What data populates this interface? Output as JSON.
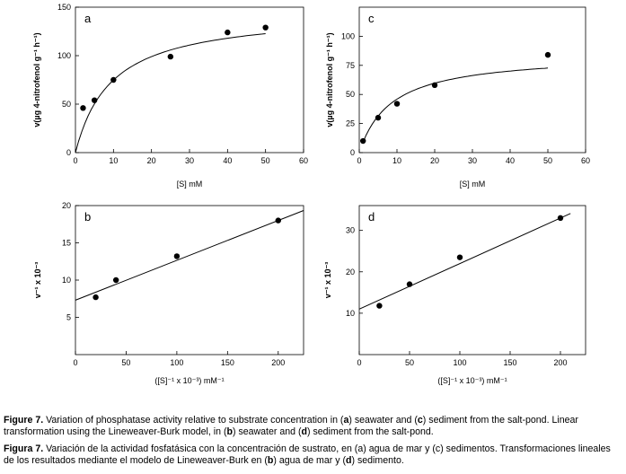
{
  "chart_data": [
    {
      "panel": "a",
      "type": "scatter",
      "xlabel": "[S] mM",
      "ylabel": "v(µg 4-nitrofenol g⁻¹ h⁻¹)",
      "xlim": [
        0,
        60
      ],
      "ylim": [
        0,
        150
      ],
      "xticks": [
        0,
        10,
        20,
        30,
        40,
        50,
        60
      ],
      "yticks": [
        0,
        50,
        100,
        150
      ],
      "points": [
        [
          2,
          46
        ],
        [
          5,
          54
        ],
        [
          10,
          75
        ],
        [
          25,
          99
        ],
        [
          40,
          124
        ],
        [
          50,
          129
        ]
      ],
      "fit": {
        "kind": "michaelis-menten",
        "vmax": 146,
        "km": 9.5,
        "x0": 0,
        "x1": 50
      }
    },
    {
      "panel": "c",
      "type": "scatter",
      "xlabel": "[S] mM",
      "ylabel": "v(µg 4-nitrofenol g⁻¹ h⁻¹)",
      "xlim": [
        0,
        60
      ],
      "ylim": [
        0,
        125
      ],
      "xticks": [
        0,
        10,
        20,
        30,
        40,
        50,
        60
      ],
      "yticks": [
        0,
        25,
        50,
        75,
        100
      ],
      "points": [
        [
          1,
          10
        ],
        [
          5,
          30
        ],
        [
          10,
          42
        ],
        [
          20,
          58
        ],
        [
          50,
          84
        ]
      ],
      "fit": {
        "kind": "michaelis-menten",
        "vmax": 85,
        "km": 8.5,
        "x0": 1,
        "x1": 50
      }
    },
    {
      "panel": "b",
      "type": "scatter",
      "xlabel": "([S]⁻¹ x 10⁻³) mM⁻¹",
      "ylabel": "v⁻¹ x 10⁻³",
      "xlim": [
        0,
        225
      ],
      "ylim": [
        0,
        20
      ],
      "xticks": [
        0,
        50,
        100,
        150,
        200
      ],
      "yticks": [
        5,
        10,
        15,
        20
      ],
      "points": [
        [
          20,
          7.7
        ],
        [
          40,
          10
        ],
        [
          100,
          13.2
        ],
        [
          200,
          18
        ]
      ],
      "fit": {
        "kind": "linear",
        "slope": 0.0535,
        "intercept": 7.3,
        "x0": 0,
        "x1": 225
      }
    },
    {
      "panel": "d",
      "type": "scatter",
      "xlabel": "([S]⁻¹ x 10⁻³) mM⁻¹",
      "ylabel": "v⁻¹ x 10⁻³",
      "xlim": [
        0,
        225
      ],
      "ylim": [
        0,
        36
      ],
      "xticks": [
        0,
        50,
        100,
        150,
        200
      ],
      "yticks": [
        10,
        20,
        30
      ],
      "points": [
        [
          20,
          11.8
        ],
        [
          50,
          17
        ],
        [
          100,
          23.5
        ],
        [
          200,
          33
        ]
      ],
      "fit": {
        "kind": "linear",
        "slope": 0.11,
        "intercept": 11,
        "x0": 0,
        "x1": 210
      }
    }
  ],
  "caption": {
    "en": {
      "label": "Figure 7.",
      "p1": " Variation of phosphatase activity relative to substrate concentration in (",
      "s1": "a",
      "p2": ") seawater and (",
      "s2": "c",
      "p3": ") sediment from the salt-pond. Linear transformation using the Lineweaver-Burk model, in (",
      "s3": "b",
      "p4": ") seawater and (",
      "s4": "d",
      "p5": ") sediment from the salt-pond."
    },
    "es": {
      "label": "Figura 7.",
      "p1": " Variación de la actividad fosfatásica con la concentración de sustrato, en (a) agua de mar y (c) sedimentos. Transformaciones lineales de los resultados mediante el modelo de Lineweaver-Burk en (",
      "s1": "b",
      "p2": ") agua de mar y (",
      "s2": "d",
      "p3": ") sedimento."
    }
  }
}
